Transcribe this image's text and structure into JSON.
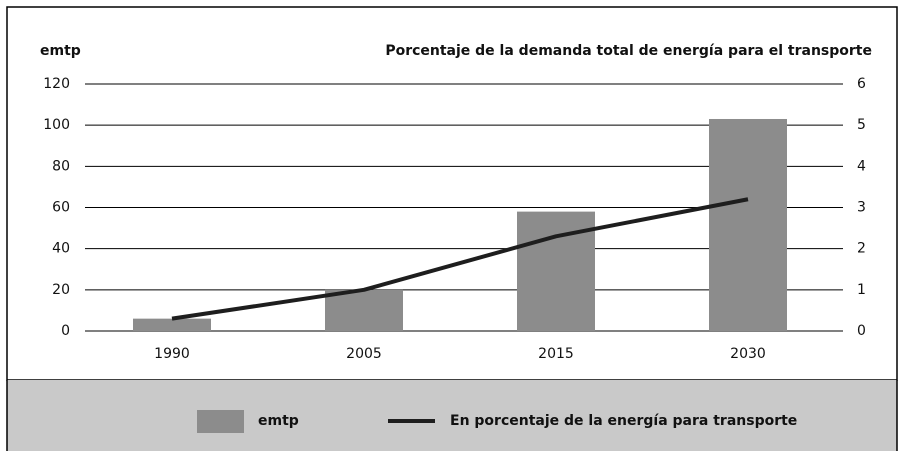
{
  "chart_data": {
    "type": "bar",
    "y_label": "emtp",
    "y2_label": "Porcentaje de la demanda total de energía para el transporte",
    "categories": [
      "1990",
      "2005",
      "2015",
      "2030"
    ],
    "series": [
      {
        "name": "emtp",
        "color": "#8c8c8c",
        "values": [
          6,
          20,
          58,
          103
        ]
      },
      {
        "name": "En porcentaje de la energía para transporte",
        "color": "#1e1e1e",
        "type": "line",
        "axis": "y2",
        "values": [
          0.3,
          1.0,
          2.3,
          3.2
        ]
      }
    ],
    "ylim": [
      0,
      120
    ],
    "yticks": [
      0,
      20,
      40,
      60,
      80,
      100,
      120
    ],
    "y2lim": [
      0,
      6
    ],
    "y2ticks": [
      0,
      1,
      2,
      3,
      4,
      5,
      6
    ],
    "grid": true,
    "legend": "bottom"
  }
}
